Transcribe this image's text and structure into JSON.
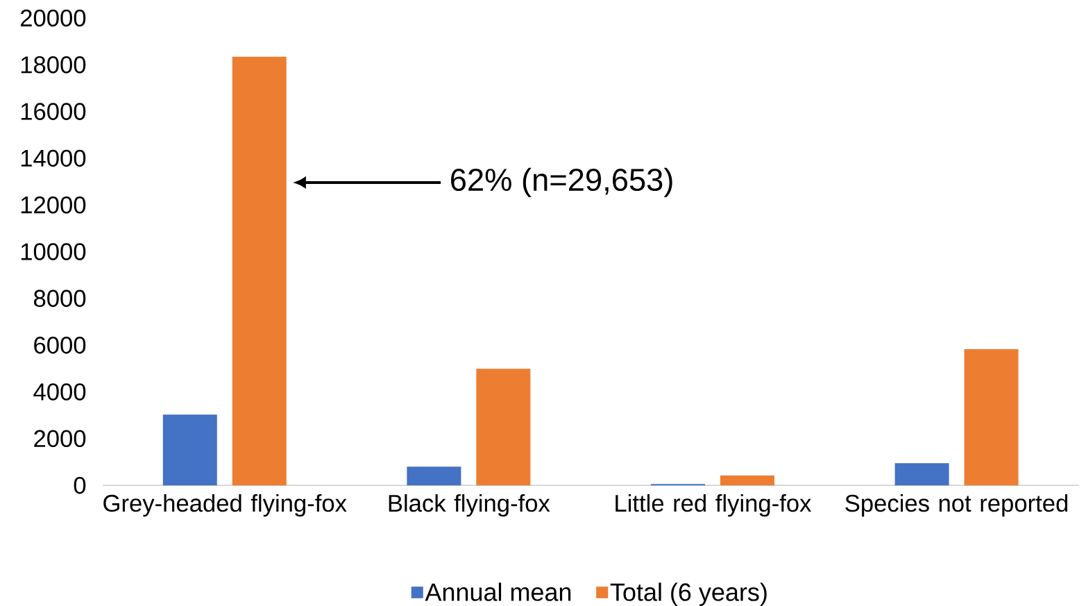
{
  "chart_data": {
    "type": "bar",
    "categories": [
      "Grey-headed flying-fox",
      "Black flying-fox",
      "Little red flying-fox",
      "Species not reported"
    ],
    "series": [
      {
        "name": "Annual mean",
        "color": "#4472c4",
        "values": [
          3030,
          800,
          60,
          950
        ]
      },
      {
        "name": "Total (6 years)",
        "color": "#ed7d31",
        "values": [
          18340,
          4990,
          420,
          5830
        ]
      }
    ],
    "ylim": [
      0,
      20000
    ],
    "yticks": [
      0,
      2000,
      4000,
      6000,
      8000,
      10000,
      12000,
      14000,
      16000,
      18000,
      20000
    ],
    "legend": "bottom",
    "annotations": [
      "62% (n=29,653)"
    ]
  }
}
